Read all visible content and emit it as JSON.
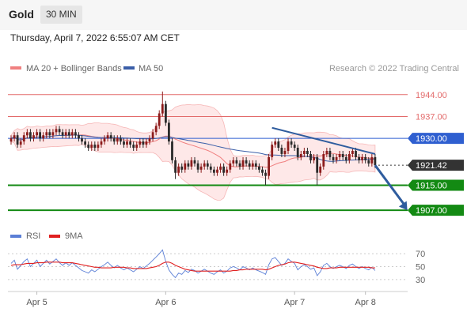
{
  "header": {
    "instrument": "Gold",
    "timeframe": "30 MIN",
    "datetime": "Thursday, April 7, 2022 6:55:07 AM CET"
  },
  "legend": {
    "ma20_label": "MA 20 + Bollinger Bands",
    "ma50_label": "MA 50",
    "ma20_color": "#f08080",
    "ma50_color": "#3a5ea8",
    "rsi_label": "RSI",
    "rsi_color": "#5b7fd6",
    "ma9_label": "9MA",
    "ma9_color": "#e02020",
    "copyright": "Research © 2022 Trading Central"
  },
  "colors": {
    "bullish": "#8c1c1c",
    "bearish": "#2a2a2a",
    "resistance": "#e36b6b",
    "pivot": "#2f5fd0",
    "support": "#138a13",
    "last_price": "#333333",
    "arrow": "#2e5c9e"
  },
  "chart_data": [
    {
      "type": "candlestick",
      "title": "",
      "ylim": [
        1903,
        1949
      ],
      "levels": [
        {
          "value": 1944.0,
          "label": "1944.00",
          "kind": "resistance"
        },
        {
          "value": 1937.0,
          "label": "1937.00",
          "kind": "resistance"
        },
        {
          "value": 1930.0,
          "label": "1930.00",
          "kind": "pivot"
        },
        {
          "value": 1921.42,
          "label": "1921.42",
          "kind": "last"
        },
        {
          "value": 1915.0,
          "label": "1915.00",
          "kind": "support"
        },
        {
          "value": 1907.0,
          "label": "1907.00",
          "kind": "support"
        }
      ],
      "x_ticks": [
        {
          "label": "Apr 5",
          "index": 8
        },
        {
          "label": "Apr 6",
          "index": 48
        },
        {
          "label": "Apr 7",
          "index": 88
        },
        {
          "label": "Apr 8",
          "index": 110
        }
      ],
      "trendline": {
        "from": {
          "index": 81,
          "value": 1933.4
        },
        "to": {
          "index": 113,
          "value": 1925.0
        }
      },
      "projection": {
        "from": {
          "index": 113,
          "value": 1921.4
        },
        "to": {
          "index": 123,
          "value": 1907.0
        }
      },
      "x": [
        0,
        1,
        2,
        3,
        4,
        5,
        6,
        7,
        8,
        9,
        10,
        11,
        12,
        13,
        14,
        15,
        16,
        17,
        18,
        19,
        20,
        21,
        22,
        23,
        24,
        25,
        26,
        27,
        28,
        29,
        30,
        31,
        32,
        33,
        34,
        35,
        36,
        37,
        38,
        39,
        40,
        41,
        42,
        43,
        44,
        45,
        46,
        47,
        48,
        49,
        50,
        51,
        52,
        53,
        54,
        55,
        56,
        57,
        58,
        59,
        60,
        61,
        62,
        63,
        64,
        65,
        66,
        67,
        68,
        69,
        70,
        71,
        72,
        73,
        74,
        75,
        76,
        77,
        78,
        79,
        80,
        81,
        82,
        83,
        84,
        85,
        86,
        87,
        88,
        89,
        90,
        91,
        92,
        93,
        94,
        95,
        96,
        97,
        98,
        99,
        100,
        101,
        102,
        103,
        104,
        105,
        106,
        107,
        108,
        109,
        110,
        111,
        112,
        113
      ],
      "open": [
        1929,
        1930,
        1931,
        1928,
        1929,
        1931,
        1932,
        1930,
        1931,
        1932,
        1930,
        1931,
        1932,
        1931,
        1932,
        1933,
        1932,
        1931,
        1932,
        1931,
        1932,
        1931,
        1930,
        1929,
        1928,
        1927,
        1928,
        1927,
        1928,
        1929,
        1930,
        1931,
        1930,
        1929,
        1930,
        1929,
        1928,
        1929,
        1928,
        1927,
        1928,
        1929,
        1928,
        1929,
        1930,
        1932,
        1934,
        1938,
        1941,
        1935,
        1929,
        1923,
        1919,
        1921,
        1920,
        1922,
        1921,
        1923,
        1922,
        1920,
        1921,
        1922,
        1921,
        1920,
        1919,
        1920,
        1921,
        1919,
        1920,
        1922,
        1923,
        1922,
        1921,
        1923,
        1922,
        1921,
        1922,
        1921,
        1920,
        1919,
        1918,
        1924,
        1928,
        1929,
        1927,
        1925,
        1926,
        1929,
        1928,
        1927,
        1924,
        1925,
        1926,
        1925,
        1923,
        1924,
        1919,
        1921,
        1925,
        1926,
        1924,
        1923,
        1924,
        1925,
        1924,
        1923,
        1925,
        1926,
        1924,
        1923,
        1924,
        1923,
        1922,
        1924
      ],
      "close": [
        1930,
        1931,
        1928,
        1929,
        1931,
        1932,
        1930,
        1931,
        1932,
        1930,
        1931,
        1932,
        1931,
        1932,
        1933,
        1932,
        1931,
        1932,
        1931,
        1932,
        1931,
        1930,
        1929,
        1928,
        1927,
        1928,
        1927,
        1928,
        1929,
        1930,
        1931,
        1930,
        1929,
        1930,
        1929,
        1928,
        1929,
        1928,
        1927,
        1928,
        1929,
        1928,
        1929,
        1930,
        1932,
        1934,
        1938,
        1941,
        1935,
        1929,
        1923,
        1919,
        1921,
        1920,
        1922,
        1921,
        1923,
        1922,
        1920,
        1921,
        1922,
        1921,
        1920,
        1919,
        1920,
        1921,
        1919,
        1920,
        1922,
        1923,
        1922,
        1921,
        1923,
        1922,
        1921,
        1922,
        1921,
        1920,
        1919,
        1918,
        1924,
        1928,
        1929,
        1927,
        1925,
        1926,
        1929,
        1928,
        1927,
        1924,
        1925,
        1926,
        1925,
        1923,
        1924,
        1919,
        1921,
        1925,
        1926,
        1924,
        1923,
        1924,
        1925,
        1924,
        1923,
        1925,
        1926,
        1924,
        1923,
        1924,
        1923,
        1922,
        1924,
        1921.42
      ],
      "high": [
        1931,
        1932,
        1932,
        1930,
        1932,
        1933,
        1933,
        1932,
        1933,
        1933,
        1932,
        1933,
        1933,
        1933,
        1934,
        1934,
        1933,
        1933,
        1933,
        1933,
        1933,
        1932,
        1931,
        1930,
        1929,
        1929,
        1929,
        1929,
        1930,
        1931,
        1932,
        1932,
        1931,
        1931,
        1931,
        1930,
        1930,
        1930,
        1929,
        1929,
        1930,
        1930,
        1930,
        1931,
        1933,
        1935,
        1939,
        1945,
        1942,
        1936,
        1930,
        1924,
        1922,
        1922,
        1923,
        1923,
        1924,
        1924,
        1923,
        1922,
        1923,
        1923,
        1922,
        1921,
        1921,
        1922,
        1922,
        1921,
        1923,
        1924,
        1924,
        1923,
        1924,
        1924,
        1923,
        1923,
        1923,
        1922,
        1921,
        1920,
        1925,
        1929,
        1930,
        1930,
        1928,
        1927,
        1930,
        1930,
        1929,
        1928,
        1926,
        1927,
        1927,
        1926,
        1925,
        1925,
        1922,
        1926,
        1927,
        1927,
        1925,
        1925,
        1926,
        1926,
        1925,
        1926,
        1927,
        1927,
        1925,
        1925,
        1925,
        1924,
        1925,
        1925
      ],
      "low": [
        1928,
        1929,
        1927,
        1927,
        1928,
        1930,
        1929,
        1929,
        1930,
        1929,
        1929,
        1930,
        1930,
        1930,
        1931,
        1931,
        1930,
        1930,
        1930,
        1930,
        1930,
        1929,
        1928,
        1927,
        1926,
        1926,
        1926,
        1926,
        1927,
        1928,
        1929,
        1929,
        1928,
        1928,
        1928,
        1927,
        1927,
        1927,
        1926,
        1926,
        1927,
        1927,
        1927,
        1928,
        1929,
        1931,
        1933,
        1937,
        1934,
        1928,
        1922,
        1917,
        1918,
        1919,
        1919,
        1920,
        1920,
        1921,
        1919,
        1919,
        1920,
        1920,
        1919,
        1918,
        1918,
        1919,
        1918,
        1918,
        1919,
        1921,
        1921,
        1920,
        1920,
        1921,
        1920,
        1920,
        1920,
        1919,
        1918,
        1915,
        1917,
        1923,
        1927,
        1926,
        1924,
        1924,
        1925,
        1927,
        1926,
        1923,
        1923,
        1924,
        1924,
        1922,
        1922,
        1915,
        1918,
        1920,
        1924,
        1923,
        1922,
        1922,
        1923,
        1923,
        1922,
        1922,
        1924,
        1923,
        1922,
        1922,
        1922,
        1921,
        1921,
        1920.5
      ]
    },
    {
      "type": "line",
      "title": "",
      "ylim": [
        20,
        80
      ],
      "y_ticks": [
        {
          "value": 70,
          "label": "70"
        },
        {
          "value": 50,
          "label": "50"
        },
        {
          "value": 30,
          "label": "30"
        }
      ],
      "series": [
        {
          "name": "RSI",
          "values": [
            55,
            60,
            46,
            52,
            58,
            62,
            50,
            55,
            60,
            50,
            55,
            60,
            54,
            58,
            62,
            56,
            52,
            56,
            52,
            56,
            52,
            48,
            44,
            42,
            40,
            45,
            42,
            46,
            50,
            53,
            57,
            52,
            48,
            52,
            48,
            45,
            48,
            45,
            42,
            46,
            50,
            47,
            51,
            55,
            60,
            65,
            70,
            76,
            58,
            45,
            38,
            33,
            40,
            38,
            44,
            41,
            46,
            44,
            40,
            43,
            46,
            43,
            40,
            38,
            42,
            45,
            40,
            43,
            48,
            50,
            48,
            45,
            50,
            48,
            45,
            48,
            45,
            43,
            41,
            38,
            53,
            62,
            64,
            58,
            52,
            55,
            62,
            58,
            55,
            45,
            50,
            53,
            50,
            46,
            48,
            36,
            42,
            52,
            55,
            50,
            47,
            50,
            52,
            50,
            47,
            52,
            54,
            50,
            47,
            50,
            47,
            45,
            49,
            44
          ]
        },
        {
          "name": "9MA",
          "values": [
            52,
            53,
            53,
            53,
            54,
            55,
            55,
            55,
            56,
            56,
            56,
            57,
            57,
            57,
            57,
            57,
            56,
            56,
            56,
            56,
            55,
            54,
            53,
            52,
            51,
            50,
            49,
            49,
            48,
            48,
            48,
            48,
            49,
            49,
            49,
            49,
            48,
            48,
            47,
            47,
            47,
            47,
            47,
            48,
            49,
            50,
            52,
            55,
            57,
            57,
            55,
            52,
            50,
            48,
            46,
            45,
            44,
            43,
            43,
            43,
            43,
            43,
            43,
            43,
            43,
            43,
            43,
            43,
            43,
            44,
            44,
            45,
            45,
            46,
            46,
            46,
            46,
            46,
            46,
            45,
            46,
            48,
            50,
            52,
            53,
            54,
            56,
            57,
            57,
            56,
            55,
            54,
            53,
            52,
            51,
            49,
            48,
            47,
            47,
            48,
            48,
            48,
            49,
            49,
            49,
            49,
            49,
            49,
            49,
            49,
            49,
            49,
            48,
            48
          ]
        }
      ]
    }
  ]
}
